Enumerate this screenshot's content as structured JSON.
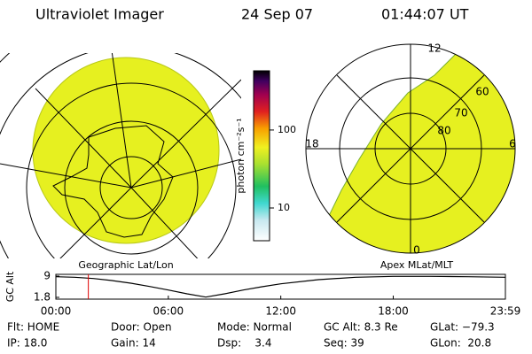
{
  "header": {
    "title": "Ultraviolet Imager",
    "date": "24 Sep 07",
    "time": "01:44:07 UT"
  },
  "left_map": {
    "label": "Geographic Lat/Lon"
  },
  "right_map": {
    "label": "Apex MLat/MLT",
    "mlt_labels": [
      "12",
      "18",
      "6",
      "0"
    ],
    "lat_labels": [
      "60",
      "70",
      "80"
    ]
  },
  "colorbar": {
    "label": "photon cm⁻²s⁻¹",
    "log_scale": true,
    "ylim": [
      3.8,
      575
    ],
    "yticks": [
      10,
      100
    ]
  },
  "altitude_plot": {
    "ylabel": "GC Alt",
    "ylim": [
      1.2,
      9.6
    ],
    "yticks": [
      1.8,
      9.0
    ],
    "xlim": [
      0,
      23.983
    ],
    "xticks": [
      {
        "value": 0,
        "label": "00:00"
      },
      {
        "value": 6,
        "label": "06:00"
      },
      {
        "value": 12,
        "label": "12:00"
      },
      {
        "value": 18,
        "label": "18:00"
      },
      {
        "value": 23.983,
        "label": "23:59"
      }
    ],
    "x": [
      0,
      1,
      2,
      3,
      4,
      5,
      6,
      7,
      8,
      9,
      10,
      11,
      12,
      14,
      16,
      18,
      20,
      22,
      23.983
    ],
    "values": [
      8.8,
      8.6,
      8.2,
      7.5,
      6.6,
      5.5,
      4.3,
      3.0,
      1.9,
      3.0,
      4.3,
      5.4,
      6.4,
      7.8,
      8.6,
      8.9,
      8.9,
      8.8,
      8.6
    ],
    "color": "#000000",
    "current_time": 1.733,
    "current_color": "#e00000"
  },
  "status": [
    [
      "Flt: HOME",
      "Door: Open",
      "Mode: Normal",
      "GC Alt: 8.3 Re",
      "GLat: −79.3"
    ],
    [
      "IP: 18.0",
      "Gain: 14",
      "Dsp:    3.4",
      "Seq: 39",
      "GLon:  20.8"
    ]
  ]
}
